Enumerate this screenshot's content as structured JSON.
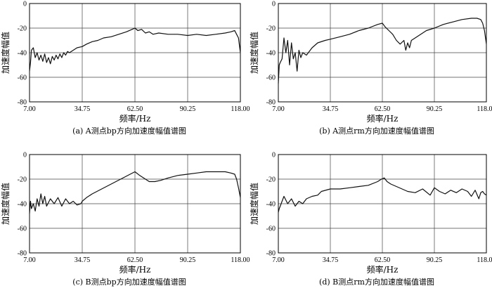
{
  "chart_data": [
    {
      "type": "line",
      "caption": "(a) A测点bp方向加速度幅值谱图",
      "xlabel": "频率/Hz",
      "ylabel": "加速度幅值",
      "xlim": [
        7.0,
        118.0
      ],
      "ylim": [
        -80,
        0
      ],
      "xticks": [
        "7.00",
        "34.75",
        "62.50",
        "90.25",
        "118.00"
      ],
      "yticks": [
        "0",
        "-20",
        "-40",
        "-60",
        "-80"
      ],
      "grid": true,
      "x": [
        7.0,
        7.5,
        8.0,
        9.0,
        10.0,
        11.0,
        12.0,
        13.0,
        14.0,
        15.0,
        16.0,
        17.0,
        18.0,
        19.0,
        20.0,
        21.0,
        22.0,
        23.0,
        24.0,
        25.0,
        26.0,
        27.0,
        28.0,
        30.0,
        32.0,
        34.75,
        37.0,
        40.0,
        43.0,
        46.0,
        50.0,
        54.0,
        58.0,
        61.0,
        62.5,
        64.0,
        66.0,
        68.0,
        70.0,
        72.0,
        75.0,
        80.0,
        85.0,
        90.25,
        95.0,
        100.0,
        105.0,
        110.0,
        113.0,
        115.0,
        116.0,
        117.0,
        118.0
      ],
      "y": [
        -55,
        -48,
        -38,
        -36,
        -44,
        -40,
        -46,
        -42,
        -47,
        -41,
        -48,
        -44,
        -49,
        -43,
        -46,
        -42,
        -45,
        -41,
        -44,
        -40,
        -42,
        -39,
        -40,
        -38,
        -36,
        -35,
        -33,
        -31,
        -30,
        -28,
        -27,
        -25,
        -23,
        -21,
        -20,
        -22,
        -21,
        -24,
        -23,
        -25,
        -24,
        -25,
        -25,
        -26,
        -25,
        -26,
        -25,
        -24,
        -23,
        -22,
        -25,
        -28,
        -40
      ]
    },
    {
      "type": "line",
      "caption": "(b) A测点rm方向加速度幅值谱图",
      "xlabel": "频率/Hz",
      "ylabel": "加速度幅值",
      "xlim": [
        7.0,
        118.0
      ],
      "ylim": [
        -80,
        0
      ],
      "xticks": [
        "7.00",
        "34.75",
        "62.50",
        "90.25",
        "118.00"
      ],
      "yticks": [
        "0",
        "-20",
        "-40",
        "-60",
        "-80"
      ],
      "grid": true,
      "x": [
        7.0,
        7.5,
        8.0,
        9.0,
        10.0,
        11.0,
        12.0,
        13.0,
        14.0,
        15.0,
        16.0,
        17.0,
        18.0,
        19.0,
        20.0,
        22.0,
        25.0,
        28.0,
        32.0,
        34.75,
        40.0,
        45.0,
        50.0,
        55.0,
        60.0,
        62.5,
        64.0,
        66.0,
        68.0,
        70.0,
        72.0,
        74.0,
        75.0,
        76.0,
        77.0,
        78.0,
        80.0,
        83.0,
        86.0,
        90.25,
        95.0,
        100.0,
        105.0,
        110.0,
        113.0,
        115.0,
        116.0,
        117.0,
        118.0
      ],
      "y": [
        -65,
        -50,
        -48,
        -45,
        -28,
        -40,
        -30,
        -50,
        -32,
        -45,
        -40,
        -55,
        -38,
        -44,
        -40,
        -42,
        -36,
        -32,
        -30,
        -29,
        -27,
        -25,
        -22,
        -20,
        -17,
        -16,
        -19,
        -22,
        -25,
        -30,
        -33,
        -30,
        -38,
        -32,
        -36,
        -30,
        -28,
        -25,
        -22,
        -20,
        -17,
        -15,
        -13,
        -12,
        -12,
        -13,
        -16,
        -22,
        -33
      ]
    },
    {
      "type": "line",
      "caption": "(c) B测点bp方向加速度幅值谱图",
      "xlabel": "频率/Hz",
      "ylabel": "加速度幅值",
      "xlim": [
        7.0,
        118.0
      ],
      "ylim": [
        -80,
        0
      ],
      "xticks": [
        "7.00",
        "34.75",
        "62.50",
        "90.25",
        "118.00"
      ],
      "yticks": [
        "0",
        "-20",
        "-40",
        "-60",
        "-80"
      ],
      "grid": true,
      "x": [
        7.0,
        7.5,
        8.0,
        9.0,
        10.0,
        11.0,
        12.0,
        13.0,
        14.0,
        15.0,
        16.0,
        18.0,
        20.0,
        22.0,
        24.0,
        26.0,
        28.0,
        30.0,
        32.0,
        34.0,
        34.75,
        37.0,
        40.0,
        45.0,
        50.0,
        55.0,
        60.0,
        62.5,
        65.0,
        68.0,
        70.0,
        73.0,
        76.0,
        80.0,
        85.0,
        90.25,
        95.0,
        100.0,
        105.0,
        110.0,
        113.0,
        115.0,
        116.0,
        117.0,
        118.0
      ],
      "y": [
        -48,
        -38,
        -44,
        -40,
        -46,
        -36,
        -42,
        -32,
        -40,
        -34,
        -42,
        -36,
        -40,
        -35,
        -42,
        -36,
        -40,
        -38,
        -41,
        -40,
        -38,
        -35,
        -32,
        -28,
        -24,
        -20,
        -16,
        -14,
        -17,
        -20,
        -22,
        -22,
        -21,
        -19,
        -17,
        -16,
        -15,
        -14,
        -14,
        -14,
        -15,
        -16,
        -20,
        -27,
        -35
      ]
    },
    {
      "type": "line",
      "caption": "(d) B测点rm方向加速度幅值谱图",
      "xlabel": "频率/Hz",
      "ylabel": "加速度幅值",
      "xlim": [
        7.0,
        118.0
      ],
      "ylim": [
        -80,
        0
      ],
      "xticks": [
        "7.00",
        "34.75",
        "62.50",
        "90.25",
        "118.00"
      ],
      "yticks": [
        "0",
        "-20",
        "-40",
        "-60",
        "-80"
      ],
      "grid": true,
      "x": [
        7.0,
        7.5,
        8.0,
        9.0,
        10.0,
        12.0,
        14.0,
        16.0,
        18.0,
        20.0,
        22.0,
        25.0,
        28.0,
        30.0,
        34.75,
        40.0,
        45.0,
        50.0,
        55.0,
        60.0,
        62.0,
        63.5,
        65.0,
        67.0,
        70.0,
        73.0,
        76.0,
        80.0,
        84.0,
        88.0,
        90.25,
        93.0,
        96.0,
        99.0,
        102.0,
        105.0,
        108.0,
        110.0,
        112.0,
        114.0,
        115.0,
        116.0,
        117.0,
        118.0
      ],
      "y": [
        -47,
        -44,
        -42,
        -38,
        -34,
        -40,
        -36,
        -42,
        -38,
        -40,
        -36,
        -34,
        -33,
        -30,
        -28,
        -28,
        -27,
        -26,
        -25,
        -22,
        -20,
        -19,
        -22,
        -24,
        -26,
        -28,
        -30,
        -31,
        -28,
        -33,
        -27,
        -30,
        -32,
        -29,
        -31,
        -28,
        -30,
        -34,
        -29,
        -36,
        -31,
        -30,
        -32,
        -33
      ]
    }
  ]
}
